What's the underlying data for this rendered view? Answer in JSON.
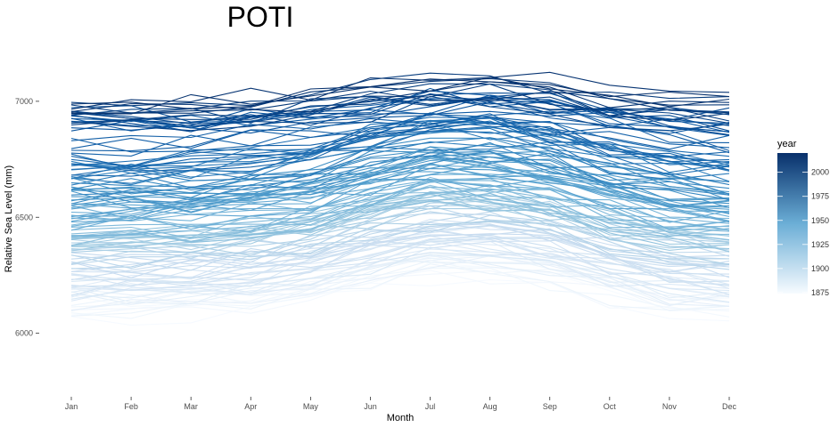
{
  "chart_data": {
    "type": "line",
    "title": "POTI",
    "xlabel": "Month",
    "ylabel": "Relative Sea Level (mm)",
    "categories": [
      "Jan",
      "Feb",
      "Mar",
      "Apr",
      "May",
      "Jun",
      "Jul",
      "Aug",
      "Sep",
      "Oct",
      "Nov",
      "Dec"
    ],
    "ylim": [
      5780,
      7360
    ],
    "yticks": [
      6000,
      6500,
      7000
    ],
    "ytick_labels": [
      "6000",
      "6500",
      "7000"
    ],
    "grid": false,
    "legend": {
      "title": "year",
      "placement": "right",
      "range": [
        1874,
        2020
      ],
      "ticks": [
        1875,
        1900,
        1925,
        1950,
        1975,
        2000
      ],
      "tick_labels": [
        "1875",
        "1900",
        "1925",
        "1950",
        "1975",
        "2000"
      ],
      "color_low": "#f7fbff",
      "color_high": "#08306b"
    },
    "series_years": [
      1874,
      1875,
      1876,
      1877,
      1878,
      1879,
      1880,
      1881,
      1882,
      1883,
      1884,
      1885,
      1886,
      1887,
      1888,
      1889,
      1890,
      1891,
      1892,
      1893,
      1894,
      1895,
      1896,
      1897,
      1898,
      1899,
      1900,
      1901,
      1902,
      1903,
      1904,
      1905,
      1906,
      1907,
      1908,
      1909,
      1910,
      1911,
      1912,
      1913,
      1914,
      1915,
      1916,
      1917,
      1918,
      1919,
      1920,
      1921,
      1922,
      1923,
      1924,
      1925,
      1926,
      1927,
      1928,
      1929,
      1930,
      1931,
      1932,
      1933,
      1934,
      1935,
      1936,
      1937,
      1938,
      1939,
      1940,
      1941,
      1942,
      1943,
      1944,
      1945,
      1946,
      1947,
      1948,
      1949,
      1950,
      1951,
      1952,
      1953,
      1954,
      1955,
      1956,
      1957,
      1958,
      1959,
      1960,
      1961,
      1962,
      1963,
      1964,
      1965,
      1966,
      1967,
      1968,
      1969,
      1970,
      1971,
      1972,
      1973,
      1974,
      1975,
      1976,
      1977,
      1978,
      1979,
      1980,
      1981,
      1982,
      1983,
      1984,
      1985,
      1986,
      1987,
      1988,
      1989,
      1990,
      1991,
      1992,
      1993,
      1994,
      1995,
      1996,
      1997,
      1998,
      1999,
      2000,
      2001,
      2002,
      2003,
      2004,
      2005,
      2006,
      2007,
      2008,
      2009,
      2010,
      2011,
      2012,
      2013,
      2014,
      2015,
      2016,
      2017,
      2018,
      2019
    ],
    "seasonal_amplitude_mm": 120,
    "trend_mm_per_year": 5.8
  }
}
